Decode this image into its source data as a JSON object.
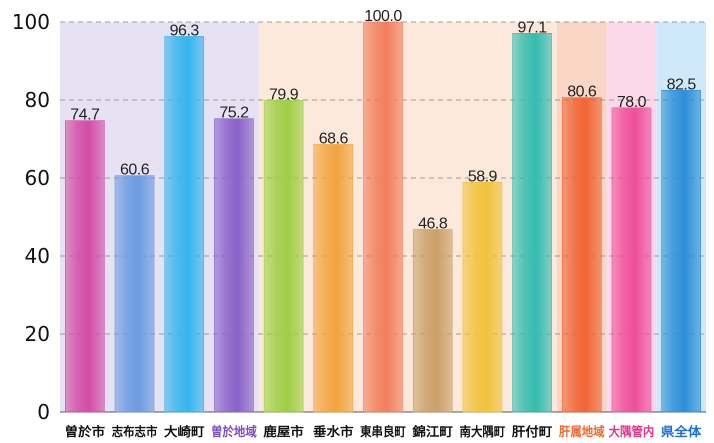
{
  "chart_data": {
    "type": "bar",
    "ylim": [
      0,
      100
    ],
    "yticks": [
      0,
      20,
      40,
      60,
      80,
      100
    ],
    "grid": true,
    "categories": [
      "曽於市",
      "志布志市",
      "大崎町",
      "曽於地域",
      "鹿屋市",
      "垂水市",
      "東串良町",
      "錦江町",
      "南大隅町",
      "肝付町",
      "肝属地域",
      "大隅管内",
      "県全体"
    ],
    "values": [
      74.7,
      60.6,
      96.3,
      75.2,
      79.9,
      68.6,
      100.0,
      46.8,
      58.9,
      97.1,
      80.6,
      78.0,
      82.5
    ],
    "value_labels": [
      "74.7",
      "60.6",
      "96.3",
      "75.2",
      "79.9",
      "68.6",
      "100.0",
      "46.8",
      "58.9",
      "97.1",
      "80.6",
      "78.0",
      "82.5"
    ],
    "bar_colors": [
      "#d24da6",
      "#6c9be0",
      "#35b5ee",
      "#8a62c9",
      "#9ecf43",
      "#f2a43c",
      "#f17e5c",
      "#caa06a",
      "#f1c23a",
      "#34bcb0",
      "#f06634",
      "#ee4f9a",
      "#2d8fd8"
    ],
    "category_label_colors": [
      "#111111",
      "#111111",
      "#111111",
      "#7a4fc0",
      "#111111",
      "#111111",
      "#111111",
      "#111111",
      "#111111",
      "#111111",
      "#f06a2c",
      "#e8338a",
      "#1c6fd8"
    ],
    "backgrounds": [
      {
        "from": 0,
        "to": 3,
        "color": "#e6e1f3"
      },
      {
        "from": 4,
        "to": 9,
        "color": "#fde9dc"
      },
      {
        "from": 10,
        "to": 10,
        "color": "#f9d6c6"
      },
      {
        "from": 11,
        "to": 11,
        "color": "#fbd9ea"
      },
      {
        "from": 12,
        "to": 12,
        "color": "#cfe9fb"
      }
    ]
  }
}
